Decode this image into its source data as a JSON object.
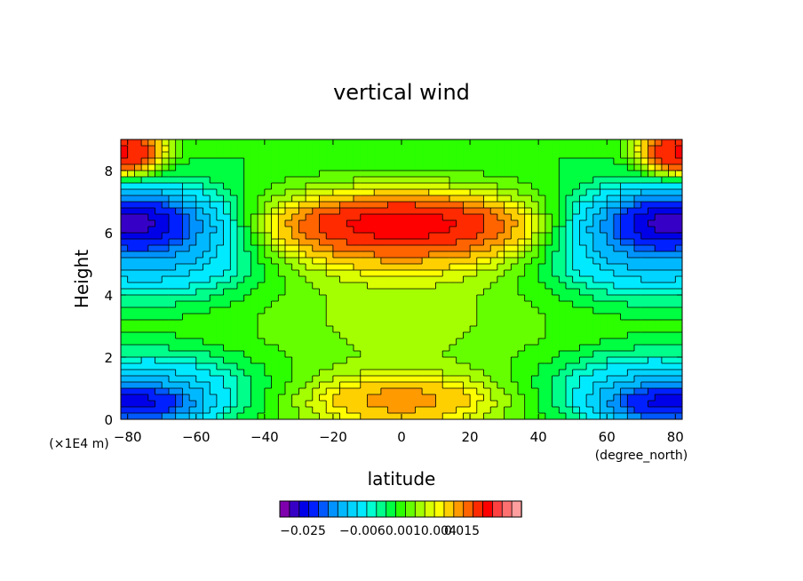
{
  "chart_data": {
    "type": "heatmap",
    "title": "vertical wind",
    "xlabel": "latitude",
    "ylabel": "Height",
    "x_units": "(degree_north)",
    "y_units": "(×1E4 m)",
    "xlim": [
      -82,
      82
    ],
    "ylim": [
      0,
      9
    ],
    "x_ticks": [
      -80,
      -60,
      -40,
      -20,
      0,
      20,
      40,
      60,
      80
    ],
    "y_ticks": [
      0,
      2,
      4,
      6,
      8
    ],
    "features": [
      {
        "lat": 0,
        "h": 6.3,
        "lat_width": 22,
        "h_width": 0.55,
        "value": 0.0085
      },
      {
        "lat": 0,
        "h": 6.1,
        "lat_width": 40,
        "h_width": 1.1,
        "value": 0.006
      },
      {
        "lat": -78,
        "h": 6.3,
        "lat_width": 14,
        "h_width": 0.7,
        "value": -0.0175
      },
      {
        "lat": 78,
        "h": 6.3,
        "lat_width": 14,
        "h_width": 0.7,
        "value": -0.0175
      },
      {
        "lat": -74,
        "h": 5.8,
        "lat_width": 30,
        "h_width": 1.6,
        "value": -0.006
      },
      {
        "lat": 74,
        "h": 5.8,
        "lat_width": 30,
        "h_width": 1.6,
        "value": -0.006
      },
      {
        "lat": -78,
        "h": 0.5,
        "lat_width": 14,
        "h_width": 0.5,
        "value": -0.014
      },
      {
        "lat": 78,
        "h": 0.5,
        "lat_width": 14,
        "h_width": 0.5,
        "value": -0.014
      },
      {
        "lat": -74,
        "h": 0.9,
        "lat_width": 28,
        "h_width": 1.2,
        "value": -0.004
      },
      {
        "lat": 74,
        "h": 0.9,
        "lat_width": 28,
        "h_width": 1.2,
        "value": -0.004
      },
      {
        "lat": 0,
        "h": 0.6,
        "lat_width": 26,
        "h_width": 0.8,
        "value": 0.0035
      },
      {
        "lat": -82,
        "h": 8.6,
        "lat_width": 10,
        "h_width": 0.6,
        "value": 0.011
      },
      {
        "lat": 82,
        "h": 8.6,
        "lat_width": 10,
        "h_width": 0.6,
        "value": 0.011
      },
      {
        "lat": 0,
        "h": 8.4,
        "lat_width": 70,
        "h_width": 0.6,
        "value": -0.0005
      },
      {
        "lat": 0,
        "h": 3.5,
        "lat_width": 34,
        "h_width": 2.0,
        "value": 0.0008
      }
    ],
    "colorbar": {
      "colors": [
        "#7f00ad",
        "#3700c6",
        "#0000e8",
        "#0020ff",
        "#0059ff",
        "#0093ff",
        "#00b8ff",
        "#00d4ff",
        "#00eaff",
        "#00ffd0",
        "#00ff8a",
        "#00ff40",
        "#2bff00",
        "#66ff00",
        "#a4ff00",
        "#d9ff00",
        "#ffff00",
        "#ffd000",
        "#ff9a00",
        "#ff6400",
        "#ff2a00",
        "#ff0000",
        "#ff4040",
        "#ff7070",
        "#ff9e9e"
      ],
      "levels": [
        -0.03,
        -0.025,
        -0.02,
        -0.015,
        -0.01,
        -0.008,
        -0.006,
        -0.004,
        -0.003,
        -0.002,
        -0.0015,
        -0.001,
        -0.0005,
        0,
        0.0005,
        0.001,
        0.0015,
        0.002,
        0.003,
        0.004,
        0.006,
        0.01,
        0.015,
        0.02,
        0.025,
        0.03
      ],
      "tick_labels": [
        "−0.025",
        "−0.0060.0010.004",
        "0.015"
      ]
    }
  }
}
